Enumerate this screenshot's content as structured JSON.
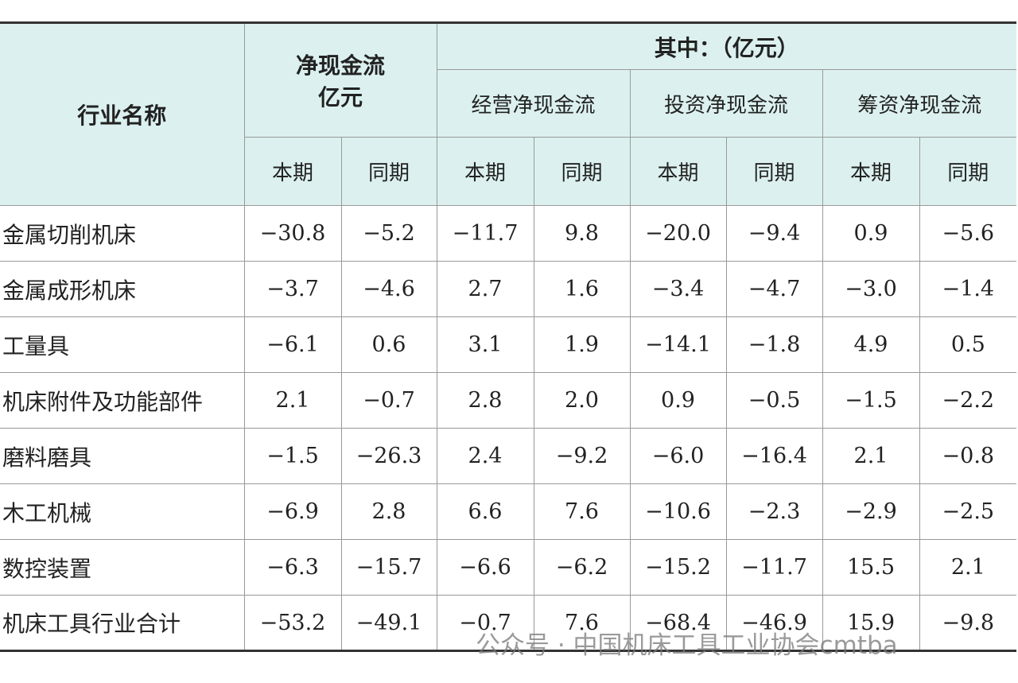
{
  "table": {
    "header": {
      "row_label": "行业名称",
      "net_lines": [
        "净现金流",
        "亿元"
      ],
      "of_which": "其中：（亿元）",
      "groups": [
        "经营净现金流",
        "投资净现金流",
        "筹资净现金流"
      ],
      "periods": [
        "本期",
        "同期"
      ]
    },
    "rows": [
      {
        "name": "金属切削机床",
        "values": [
          "−30.8",
          "−5.2",
          "−11.7",
          "9.8",
          "−20.0",
          "−9.4",
          "0.9",
          "−5.6"
        ]
      },
      {
        "name": "金属成形机床",
        "values": [
          "−3.7",
          "−4.6",
          "2.7",
          "1.6",
          "−3.4",
          "−4.7",
          "−3.0",
          "−1.4"
        ]
      },
      {
        "name": "工量具",
        "values": [
          "−6.1",
          "0.6",
          "3.1",
          "1.9",
          "−14.1",
          "−1.8",
          "4.9",
          "0.5"
        ]
      },
      {
        "name": "机床附件及功能部件",
        "values": [
          "2.1",
          "−0.7",
          "2.8",
          "2.0",
          "0.9",
          "−0.5",
          "−1.5",
          "−2.2"
        ]
      },
      {
        "name": "磨料磨具",
        "values": [
          "−1.5",
          "−26.3",
          "2.4",
          "−9.2",
          "−6.0",
          "−16.4",
          "2.1",
          "−0.8"
        ]
      },
      {
        "name": "木工机械",
        "values": [
          "−6.9",
          "2.8",
          "6.6",
          "7.6",
          "−10.6",
          "−2.3",
          "−2.9",
          "−2.5"
        ]
      },
      {
        "name": "数控装置",
        "values": [
          "−6.3",
          "−15.7",
          "−6.6",
          "−6.2",
          "−15.2",
          "−11.7",
          "15.5",
          "2.1"
        ]
      },
      {
        "name": "机床工具行业合计",
        "values": [
          "−53.2",
          "−49.1",
          "−0.7",
          "7.6",
          "−68.4",
          "−46.9",
          "15.9",
          "−9.8"
        ]
      }
    ]
  },
  "watermark": "公众号 · 中国机床工具工业协会cmtba"
}
